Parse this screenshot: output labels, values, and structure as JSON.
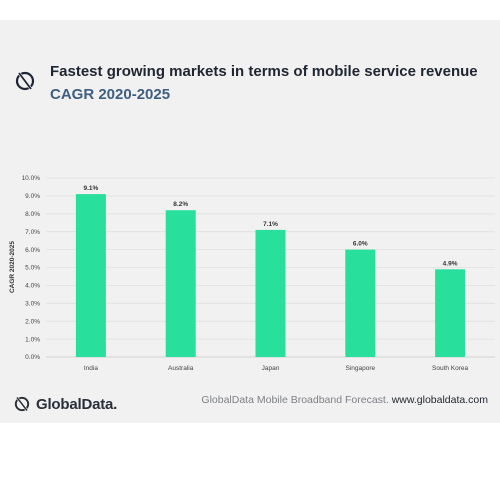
{
  "header": {
    "title": "Fastest growing markets in terms of mobile service revenue",
    "subtitle": "CAGR 2020-2025"
  },
  "footer": {
    "brand": "GlobalData.",
    "source_text": "GlobalData Mobile Broadband Forecast.",
    "website": "www.globaldata.com"
  },
  "colors": {
    "bar": "#28df9c",
    "background": "#f1f1f1",
    "title": "#1e2633",
    "subtitle": "#3e5f80"
  },
  "icons": {
    "logo": "globaldata-logo-icon"
  },
  "chart_data": {
    "type": "bar",
    "categories": [
      "India",
      "Australia",
      "Japan",
      "Singapore",
      "South Korea"
    ],
    "values": [
      9.1,
      8.2,
      7.1,
      6.0,
      4.9
    ],
    "data_labels": [
      "9.1%",
      "8.2%",
      "7.1%",
      "6.0%",
      "4.9%"
    ],
    "ylabel": "CAGR 2020-2025",
    "ylim": [
      0,
      10
    ],
    "ytick_values": [
      0,
      1,
      2,
      3,
      4,
      5,
      6,
      7,
      8,
      9,
      10
    ],
    "ytick_labels": [
      "0.0%",
      "1.0%",
      "2.0%",
      "3.0%",
      "4.0%",
      "5.0%",
      "6.0%",
      "7.0%",
      "8.0%",
      "9.0%",
      "10.0%"
    ],
    "grid": true,
    "legend": "none"
  }
}
